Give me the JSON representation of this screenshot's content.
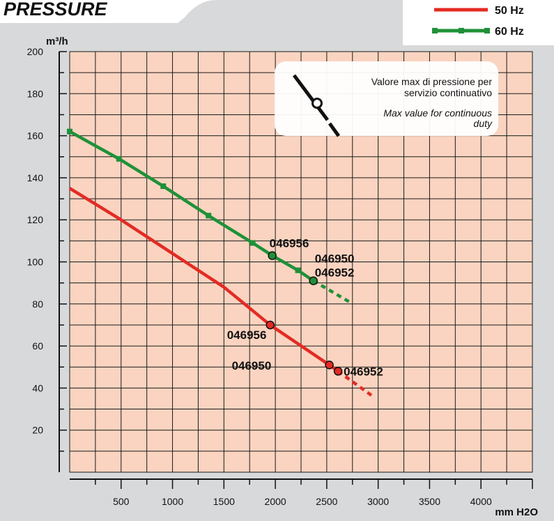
{
  "chart_data": {
    "type": "line",
    "title": "PRESSURE",
    "xlabel": "mm H2O",
    "ylabel": "m³/h",
    "xlim": [
      0,
      4500
    ],
    "ylim": [
      0,
      200
    ],
    "x_ticks": [
      500,
      1000,
      1500,
      2000,
      2500,
      3000,
      3500,
      4000
    ],
    "y_ticks": [
      20,
      40,
      60,
      80,
      100,
      120,
      140,
      160,
      180,
      200
    ],
    "grid": true,
    "legend_position": "top-right",
    "series": [
      {
        "name": "50 Hz",
        "color": "#e32b24",
        "marker": "none",
        "points": [
          [
            0,
            135
          ],
          [
            500,
            120
          ],
          [
            1000,
            104
          ],
          [
            1500,
            88
          ],
          [
            1950,
            70
          ],
          [
            2525,
            51
          ],
          [
            2610,
            48
          ]
        ],
        "extension": [
          [
            2610,
            48
          ],
          [
            2950,
            36
          ]
        ],
        "max_points": [
          {
            "x": 1950,
            "y": 70,
            "label": "046956"
          },
          {
            "x": 2525,
            "y": 51,
            "label": "046950"
          },
          {
            "x": 2610,
            "y": 48,
            "label": "046952"
          }
        ]
      },
      {
        "name": "60 Hz",
        "color": "#1f9138",
        "marker": "square",
        "points": [
          [
            0,
            162
          ],
          [
            480,
            149
          ],
          [
            910,
            136
          ],
          [
            1350,
            122
          ],
          [
            1780,
            109
          ],
          [
            1970,
            103
          ],
          [
            2220,
            96
          ],
          [
            2370,
            91
          ]
        ],
        "extension": [
          [
            2370,
            91
          ],
          [
            2720,
            81
          ]
        ],
        "max_points": [
          {
            "x": 1970,
            "y": 103,
            "label": "046956"
          },
          {
            "x": 2370,
            "y": 91,
            "label": "046950\n046952"
          }
        ]
      }
    ],
    "annotation": {
      "text_it": [
        "Valore max di pressione per",
        "servizio continuativo"
      ],
      "text_en": [
        "Max value for continuous",
        "duty"
      ]
    }
  },
  "colors": {
    "frame_bg": "#d8d9da",
    "plot_bg": "#fad4c0",
    "grid": "#1a1a1a",
    "text": "#111111"
  }
}
